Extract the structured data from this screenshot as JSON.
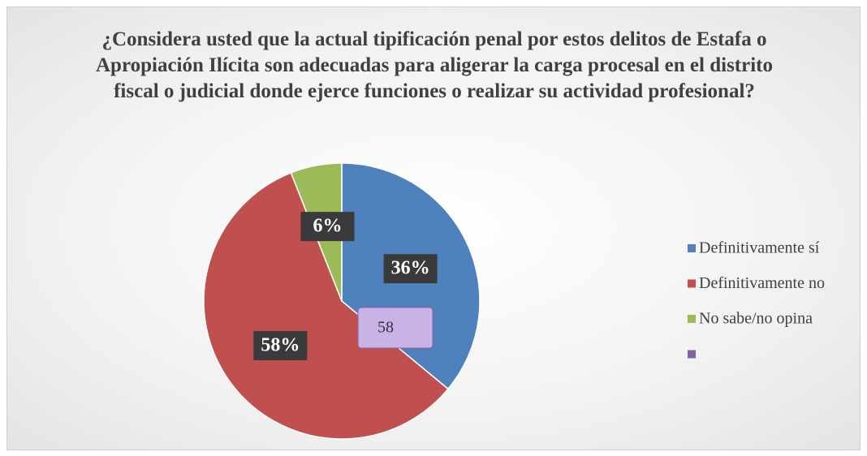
{
  "chart_data": {
    "type": "pie",
    "title": "¿Considera usted que la actual tipificación penal por estos delitos de Estafa o Apropiación Ilícita son adecuadas para aligerar la carga procesal en el distrito fiscal o judicial donde ejerce funciones o realizar su actividad profesional?",
    "categories": [
      "Definitivamente sí",
      "Definitivamente no",
      "No sabe/no opina",
      null
    ],
    "values": [
      36,
      58,
      6,
      null
    ],
    "value_labels": [
      "36%",
      "58%",
      "6%",
      null
    ],
    "colors": [
      "#4f81bd",
      "#c0504d",
      "#9bbb59",
      "#8064a2"
    ],
    "annotations": [
      {
        "text": "58"
      }
    ],
    "legend": "right"
  }
}
